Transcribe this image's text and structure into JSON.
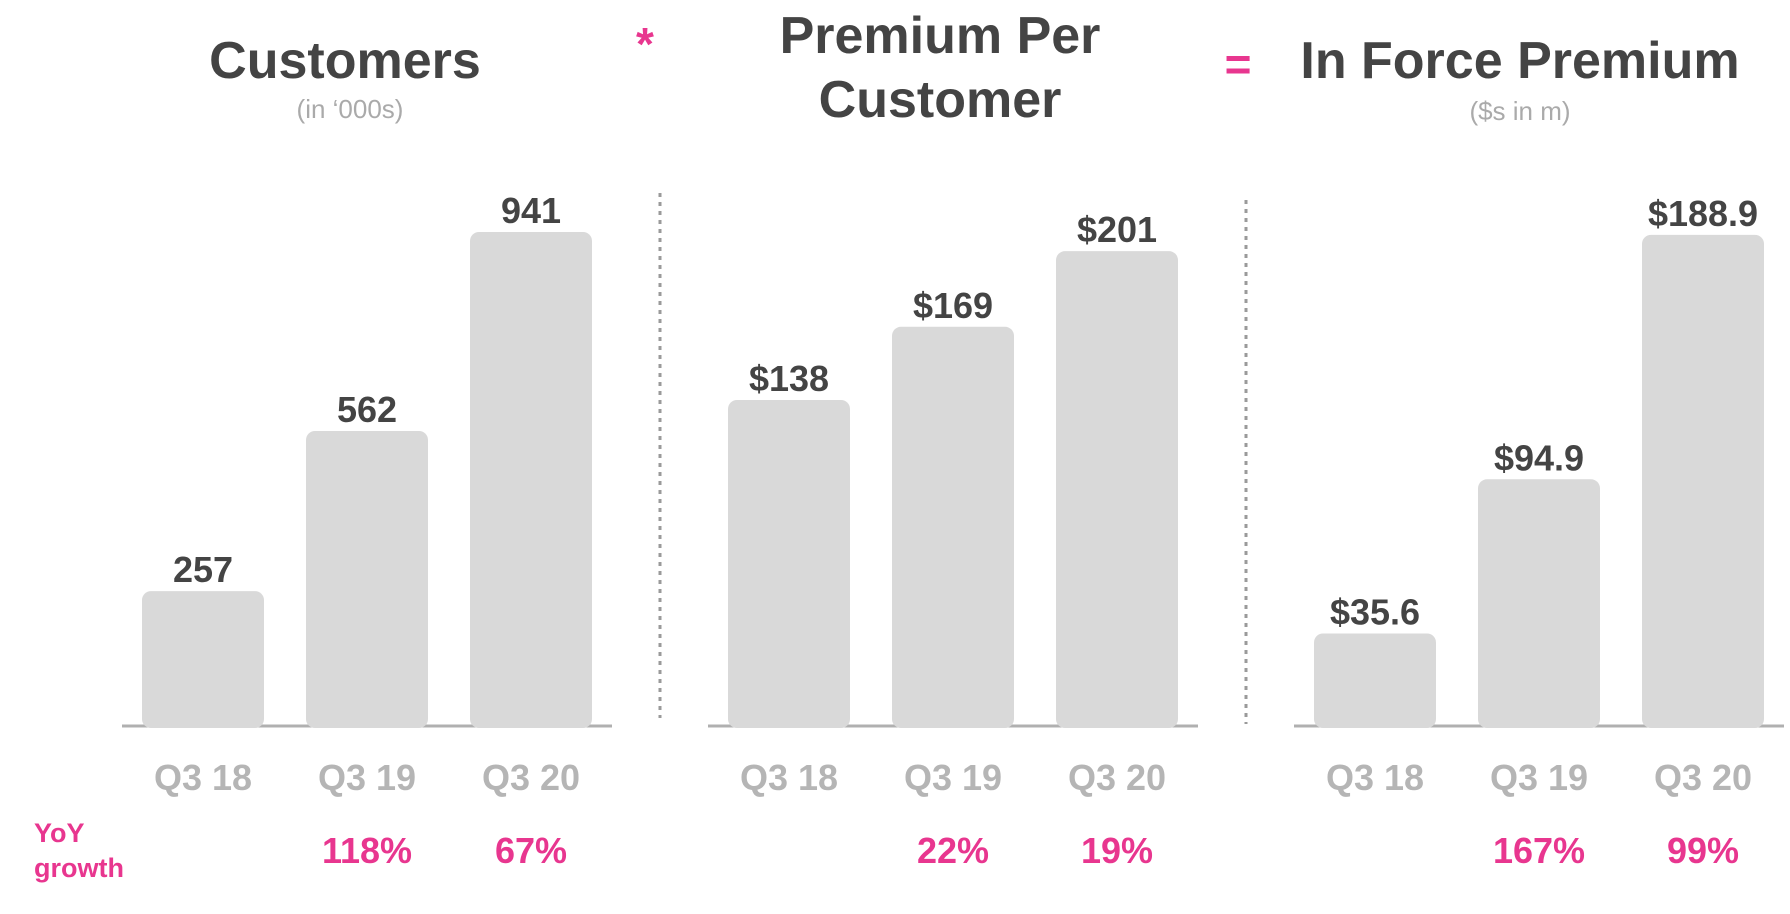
{
  "colors": {
    "bar": "#d9d9d9",
    "value_text": "#444444",
    "tick_text": "#b5b5b5",
    "accent": "#e8368f",
    "subtitle_text": "#aaaaaa"
  },
  "operators": {
    "multiply": "*",
    "equals": "="
  },
  "growth_caption": {
    "line1": "YoY",
    "line2": "growth"
  },
  "chart_data": [
    {
      "type": "bar",
      "title_lines": [
        "Customers"
      ],
      "subtitle": "(in ‘000s)",
      "categories": [
        "Q3 18",
        "Q3 19",
        "Q3 20"
      ],
      "values": [
        257,
        562,
        941
      ],
      "value_labels": [
        "257",
        "562",
        "941"
      ],
      "yoy_growth": [
        "",
        "118%",
        "67%"
      ],
      "ylim": [
        0,
        1000
      ]
    },
    {
      "type": "bar",
      "title_lines": [
        "Premium Per",
        "Customer"
      ],
      "subtitle": "",
      "categories": [
        "Q3 18",
        "Q3 19",
        "Q3 20"
      ],
      "values": [
        138,
        169,
        201
      ],
      "value_labels": [
        "$138",
        "$169",
        "$201"
      ],
      "yoy_growth": [
        "",
        "22%",
        "19%"
      ],
      "ylim": [
        0,
        218
      ]
    },
    {
      "type": "bar",
      "title_lines": [
        "In Force Premium"
      ],
      "subtitle": "($s in m)",
      "categories": [
        "Q3 18",
        "Q3 19",
        "Q3 20"
      ],
      "values": [
        35.6,
        94.9,
        188.9
      ],
      "value_labels": [
        "$35.6",
        "$94.9",
        "$188.9"
      ],
      "yoy_growth": [
        "",
        "167%",
        "99%"
      ],
      "ylim": [
        0,
        200
      ]
    }
  ]
}
